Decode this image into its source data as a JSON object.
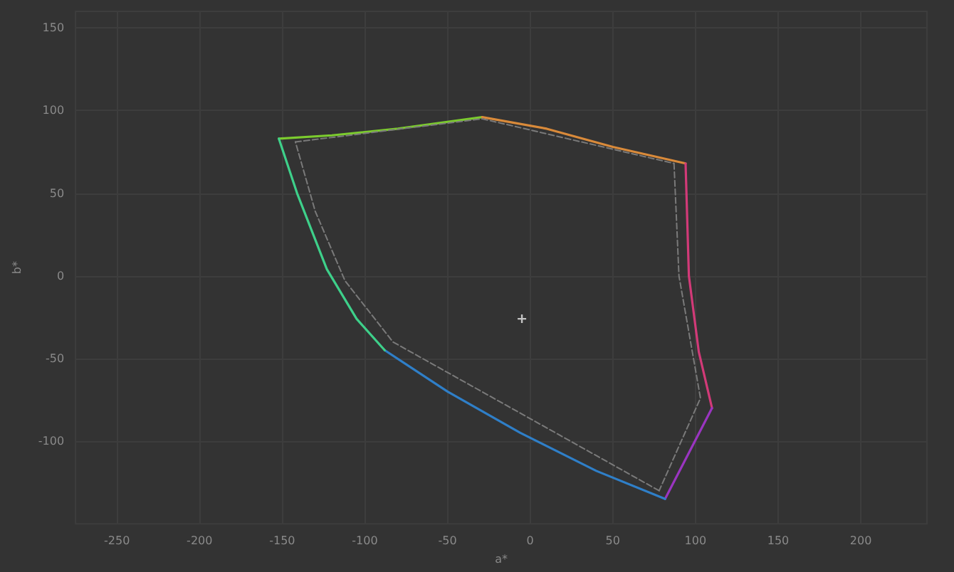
{
  "chart_data": {
    "type": "line",
    "xlabel": "a*",
    "ylabel": "b*",
    "xlim": [
      -275,
      240
    ],
    "ylim": [
      -150,
      160
    ],
    "xticks": [
      -250,
      -200,
      -150,
      -100,
      -50,
      0,
      50,
      100,
      150,
      200
    ],
    "yticks": [
      -100,
      -50,
      0,
      50,
      100,
      150
    ],
    "grid": true,
    "marker": "none",
    "series": [
      {
        "color": "#7ccc2e",
        "x": [
          -152,
          -120,
          -80,
          -29
        ],
        "values": [
          83,
          85,
          89,
          96
        ]
      },
      {
        "color": "#d98a3a",
        "x": [
          -29,
          10,
          50,
          94
        ],
        "values": [
          96,
          89,
          78,
          68
        ]
      },
      {
        "color": "#d23a78",
        "x": [
          94,
          96,
          102,
          110
        ],
        "values": [
          68,
          0,
          -46,
          -80
        ]
      },
      {
        "color": "#9a35c0",
        "x": [
          110,
          81.6
        ],
        "values": [
          -80,
          -135
        ]
      },
      {
        "color": "#2f7fc8",
        "x": [
          81.6,
          40,
          -6,
          -50,
          -88
        ],
        "values": [
          -135,
          -118,
          -95,
          -70,
          -45
        ]
      },
      {
        "color": "#3ed08a",
        "x": [
          -88,
          -105,
          -123,
          -141,
          -152
        ],
        "values": [
          -45,
          -26,
          4,
          50,
          83
        ]
      },
      {
        "color": "#7a7a7a",
        "line_style": "dashed",
        "x": [
          -142,
          -29,
          87
        ],
        "values": [
          81,
          95,
          68
        ]
      },
      {
        "color": "#7a7a7a",
        "line_style": "dashed",
        "x": [
          87,
          90,
          103,
          78
        ],
        "values": [
          68,
          0,
          -74,
          -130
        ]
      },
      {
        "color": "#7a7a7a",
        "line_style": "dashed",
        "x": [
          78,
          -83,
          -112,
          -130,
          -142
        ],
        "values": [
          -130,
          -40,
          -3,
          39,
          81
        ]
      },
      {
        "type": "scatter",
        "marker": "cross",
        "color": "#e8e8e8",
        "x": [
          -5
        ],
        "values": [
          -26
        ]
      }
    ]
  }
}
